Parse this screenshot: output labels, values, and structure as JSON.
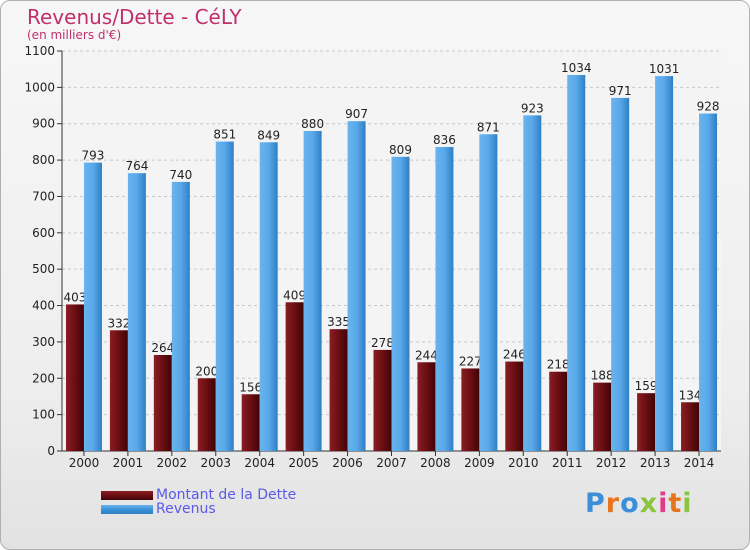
{
  "title": "Revenus/Dette - CéLY",
  "subtitle": "(en milliers d'€)",
  "logo": {
    "text": "Proxiti",
    "letter_colors": [
      "#3a8fd8",
      "#e8741d",
      "#3a8fd8",
      "#8bc53f",
      "#e03c8a",
      "#e8741d",
      "#8bc53f"
    ]
  },
  "colors": {
    "title": "#c0306a",
    "dette": "#6b0e12",
    "revenus": "#3b93d8",
    "legend_text": "#5a5ae6"
  },
  "chart_data": {
    "type": "bar",
    "title": "Revenus/Dette - CéLY",
    "subtitle": "(en milliers d'€)",
    "categories": [
      "2000",
      "2001",
      "2002",
      "2003",
      "2004",
      "2005",
      "2006",
      "2007",
      "2008",
      "2009",
      "2010",
      "2011",
      "2012",
      "2013",
      "2014"
    ],
    "series": [
      {
        "name": "Montant de la Dette",
        "values": [
          403,
          332,
          264,
          200,
          156,
          409,
          335,
          278,
          244,
          227,
          246,
          218,
          188,
          159,
          134
        ]
      },
      {
        "name": "Revenus",
        "values": [
          793,
          764,
          740,
          851,
          849,
          880,
          907,
          809,
          836,
          871,
          923,
          1034,
          971,
          1031,
          928
        ]
      }
    ],
    "ylim": [
      0,
      1100
    ],
    "yticks": [
      0,
      100,
      200,
      300,
      400,
      500,
      600,
      700,
      800,
      900,
      1000,
      1100
    ],
    "grid": true,
    "legend_position": "bottom-left"
  }
}
